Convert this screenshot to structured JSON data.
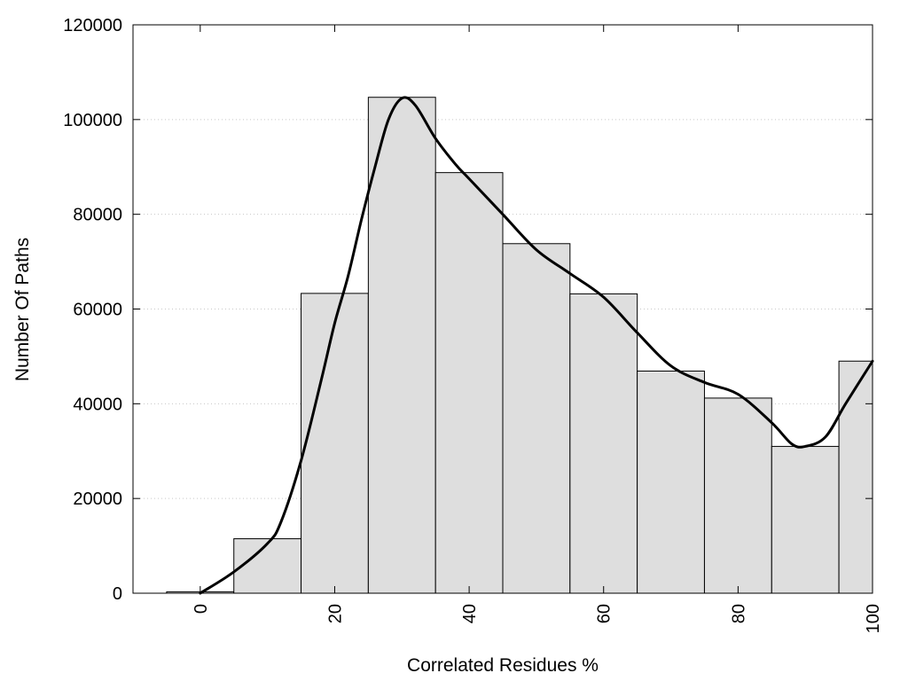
{
  "chart_data": {
    "type": "bar",
    "xlabel": "Correlated Residues %",
    "ylabel": "Number Of Paths",
    "xlim": [
      -10,
      100
    ],
    "ylim": [
      0,
      120000
    ],
    "bin_width": 10,
    "bins": [
      {
        "x": 0,
        "value": 300
      },
      {
        "x": 10,
        "value": 11500
      },
      {
        "x": 20,
        "value": 63300
      },
      {
        "x": 30,
        "value": 104700
      },
      {
        "x": 40,
        "value": 88800
      },
      {
        "x": 50,
        "value": 73800
      },
      {
        "x": 60,
        "value": 63200
      },
      {
        "x": 70,
        "value": 46900
      },
      {
        "x": 80,
        "value": 41200
      },
      {
        "x": 90,
        "value": 31000
      },
      {
        "x": 100,
        "value": 49000
      }
    ],
    "curve": [
      {
        "x": 0,
        "y": 0
      },
      {
        "x": 5,
        "y": 4500
      },
      {
        "x": 10,
        "y": 10500
      },
      {
        "x": 12,
        "y": 15000
      },
      {
        "x": 15,
        "y": 28000
      },
      {
        "x": 18,
        "y": 45000
      },
      {
        "x": 20,
        "y": 57000
      },
      {
        "x": 22,
        "y": 67000
      },
      {
        "x": 24,
        "y": 79000
      },
      {
        "x": 26,
        "y": 90000
      },
      {
        "x": 28,
        "y": 100000
      },
      {
        "x": 30,
        "y": 104500
      },
      {
        "x": 32,
        "y": 103000
      },
      {
        "x": 35,
        "y": 96000
      },
      {
        "x": 38,
        "y": 90500
      },
      {
        "x": 40,
        "y": 87500
      },
      {
        "x": 45,
        "y": 80000
      },
      {
        "x": 50,
        "y": 72500
      },
      {
        "x": 55,
        "y": 67500
      },
      {
        "x": 60,
        "y": 62500
      },
      {
        "x": 65,
        "y": 55000
      },
      {
        "x": 70,
        "y": 48000
      },
      {
        "x": 75,
        "y": 44500
      },
      {
        "x": 80,
        "y": 42000
      },
      {
        "x": 85,
        "y": 36000
      },
      {
        "x": 88,
        "y": 31500
      },
      {
        "x": 90,
        "y": 31000
      },
      {
        "x": 93,
        "y": 33000
      },
      {
        "x": 96,
        "y": 40000
      },
      {
        "x": 100,
        "y": 49000
      }
    ],
    "x_ticks": [
      "0",
      "20",
      "40",
      "60",
      "80",
      "100"
    ],
    "x_tick_values": [
      0,
      20,
      40,
      60,
      80,
      100
    ],
    "y_ticks": [
      "0",
      "20000",
      "40000",
      "60000",
      "80000",
      "100000",
      "120000"
    ],
    "y_tick_values": [
      0,
      20000,
      40000,
      60000,
      80000,
      100000,
      120000
    ],
    "grid": "horizontal dotted",
    "bar_color": "#dedede",
    "bar_stroke": "#000000",
    "curve_color": "#000000"
  }
}
